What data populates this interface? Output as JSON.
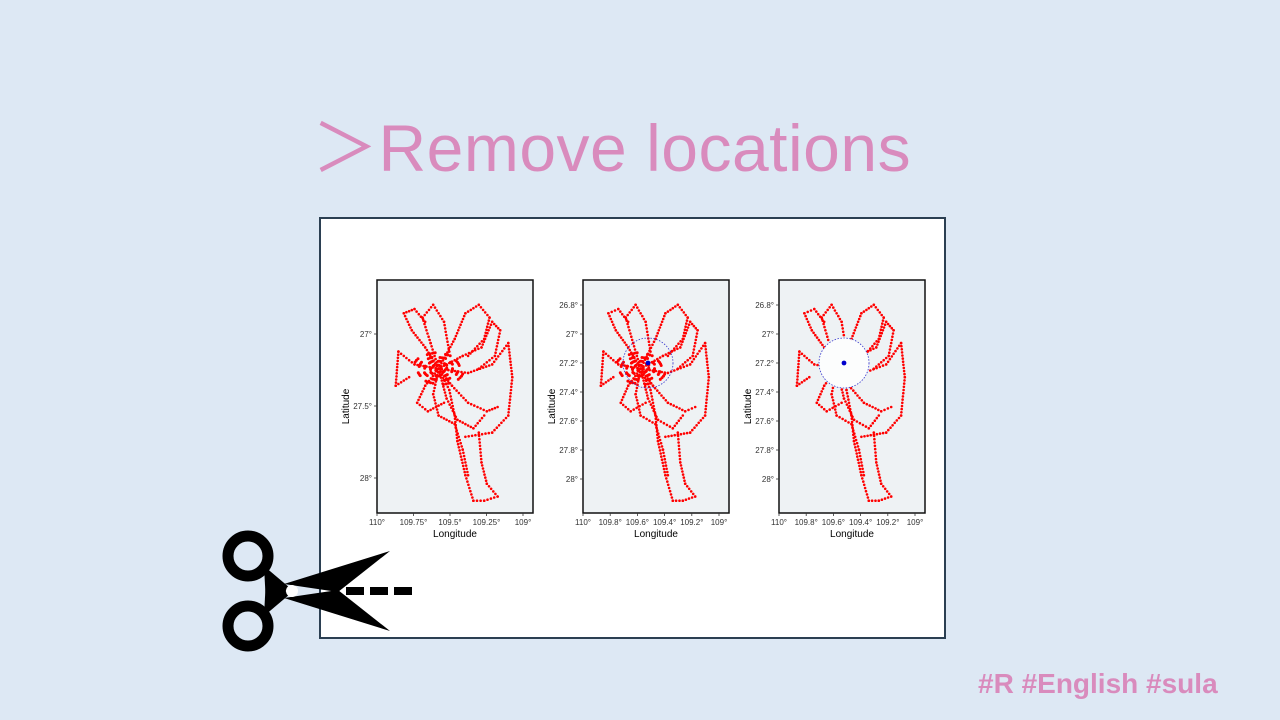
{
  "slide": {
    "title": "＞Remove locations",
    "hashtags": "#R #English #sula"
  },
  "colors": {
    "background": "#dde8f4",
    "accent": "#d98bbd",
    "track": "#ff0000",
    "center": "#0000cc",
    "panel_bg": "#eef2f4"
  },
  "chart_data": [
    {
      "type": "scatter",
      "xlabel": "Longitude",
      "ylabel": "Latitude",
      "xticks": [
        "110°",
        "109.75°",
        "109.5°",
        "109.25°",
        "109°"
      ],
      "yticks": [
        "27°",
        "27.5°",
        "28°"
      ],
      "legend": "none"
    },
    {
      "type": "scatter",
      "xlabel": "Longitude",
      "ylabel": "Latitude",
      "xticks": [
        "110°",
        "109.8°",
        "109.6°",
        "109.4°",
        "109.2°",
        "109°"
      ],
      "yticks": [
        "26.8°",
        "27°",
        "27.2°",
        "27.4°",
        "27.6°",
        "27.8°",
        "28°"
      ],
      "legend": "none"
    },
    {
      "type": "scatter",
      "xlabel": "Longitude",
      "ylabel": "Latitude",
      "xticks": [
        "110°",
        "109.8°",
        "109.6°",
        "109.4°",
        "109.2°",
        "109°"
      ],
      "yticks": [
        "26.8°",
        "27°",
        "27.2°",
        "27.4°",
        "27.6°",
        "27.8°",
        "28°"
      ],
      "legend": "none"
    }
  ],
  "icons": {
    "scissors": "scissors-icon"
  }
}
